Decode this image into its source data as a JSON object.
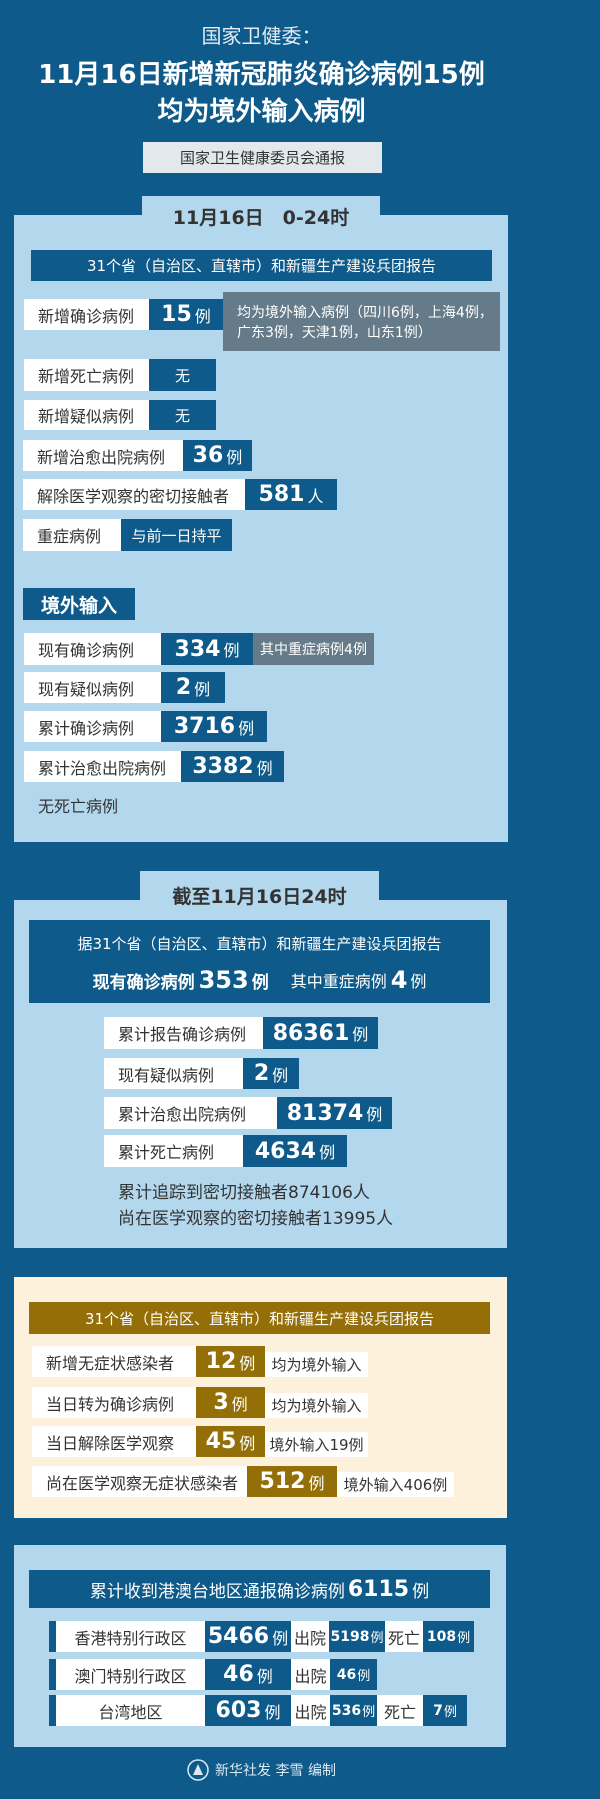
{
  "colors": {
    "background": "#0e5a8a",
    "panel": "#b3d8ee",
    "note_gray": "#657b89",
    "asymptomatic_panel": "#fdf1dc",
    "gold": "#946e06"
  },
  "header": {
    "subtitle": "国家卫健委：",
    "title_line1": "11月16日新增新冠肺炎确诊病例15例",
    "title_line2": "均为境外输入病例",
    "source": "国家卫生健康委员会通报"
  },
  "daily": {
    "tab": "11月16日　0-24时",
    "report_bar": "31个省（自治区、直辖市）和新疆生产建设兵团报告",
    "rows": [
      {
        "label": "新增确诊病例",
        "value": "15",
        "unit": "例",
        "note_line1": "均为境外输入病例（四川6例，上海4例，",
        "note_line2": "广东3例，天津1例，山东1例）"
      },
      {
        "label": "新增死亡病例",
        "value": "无"
      },
      {
        "label": "新增疑似病例",
        "value": "无"
      },
      {
        "label": "新增治愈出院病例",
        "value": "36",
        "unit": "例"
      },
      {
        "label": "解除医学观察的密切接触者",
        "value": "581",
        "unit": "人"
      },
      {
        "label": "重症病例",
        "value": "与前一日持平"
      }
    ],
    "imported": {
      "heading": "境外输入",
      "rows": [
        {
          "label": "现有确诊病例",
          "value": "334",
          "unit": "例",
          "note": "其中重症病例4例"
        },
        {
          "label": "现有疑似病例",
          "value": "2",
          "unit": "例"
        },
        {
          "label": "累计确诊病例",
          "value": "3716",
          "unit": "例"
        },
        {
          "label": "累计治愈出院病例",
          "value": "3382",
          "unit": "例"
        }
      ],
      "no_death": "无死亡病例"
    }
  },
  "cumulative": {
    "tab": "截至11月16日24时",
    "box_line1": "据31个省（自治区、直辖市）和新疆生产建设兵团报告",
    "current_label": "现有确诊病例",
    "current_value": "353",
    "current_unit": "例",
    "severe_label": "其中重症病例",
    "severe_value": "4",
    "severe_unit": "例",
    "rows": [
      {
        "label": "累计报告确诊病例",
        "value": "86361",
        "unit": "例"
      },
      {
        "label": "现有疑似病例",
        "value": "2",
        "unit": "例"
      },
      {
        "label": "累计治愈出院病例",
        "value": "81374",
        "unit": "例"
      },
      {
        "label": "累计死亡病例",
        "value": "4634",
        "unit": "例"
      }
    ],
    "contacts_traced": "累计追踪到密切接触者874106人",
    "contacts_observed": "尚在医学观察的密切接触者13995人"
  },
  "asymptomatic": {
    "bar": "31个省（自治区、直辖市）和新疆生产建设兵团报告",
    "rows": [
      {
        "label": "新增无症状感染者",
        "value": "12",
        "unit": "例",
        "note": "均为境外输入"
      },
      {
        "label": "当日转为确诊病例",
        "value": "3",
        "unit": "例",
        "note": "均为境外输入"
      },
      {
        "label": "当日解除医学观察",
        "value": "45",
        "unit": "例",
        "note": "境外输入19例"
      },
      {
        "label": "尚在医学观察无症状感染者",
        "value": "512",
        "unit": "例",
        "note": "境外输入406例"
      }
    ]
  },
  "hmt": {
    "title": "累计收到港澳台地区通报确诊病例",
    "total": "6115",
    "unit": "例",
    "rows": [
      {
        "region": "香港特别行政区",
        "value": "5466",
        "unit": "例",
        "discharged_label": "出院",
        "discharged": "5198",
        "discharged_unit": "例",
        "died_label": "死亡",
        "died": "108",
        "died_unit": "例"
      },
      {
        "region": "澳门特别行政区",
        "value": "46",
        "unit": "例",
        "discharged_label": "出院",
        "discharged": "46",
        "discharged_unit": "例"
      },
      {
        "region": "台湾地区",
        "value": "603",
        "unit": "例",
        "discharged_label": "出院",
        "discharged": "536",
        "discharged_unit": "例",
        "died_label": "死亡",
        "died": "7",
        "died_unit": "例"
      }
    ]
  },
  "footer": {
    "credit": "新华社发 李雪 编制",
    "logo_icon": "xinhua-logo-icon"
  }
}
